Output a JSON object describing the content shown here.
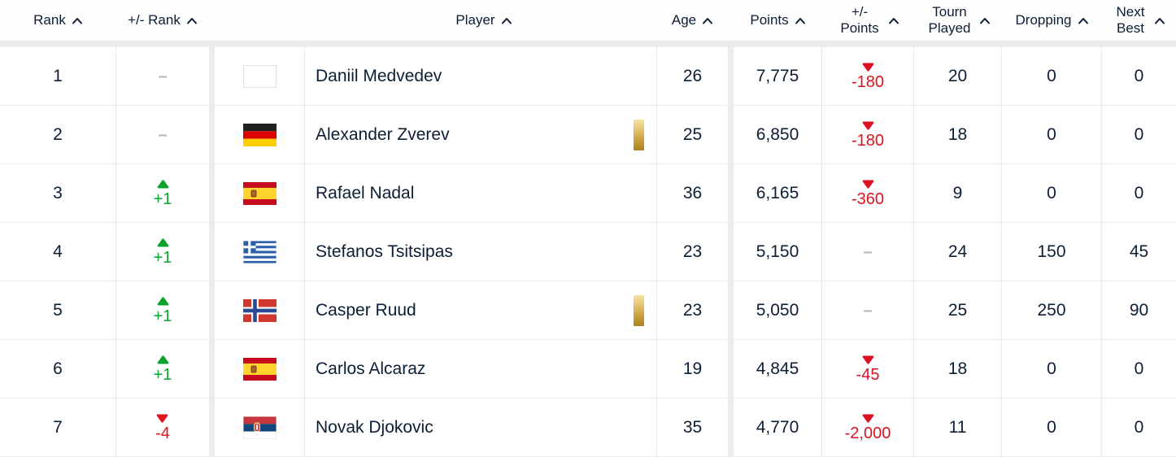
{
  "table": {
    "columns": [
      {
        "key": "rank",
        "label": "Rank"
      },
      {
        "key": "rank_change",
        "label": "+/- Rank"
      },
      {
        "key": "player",
        "label": "Player"
      },
      {
        "key": "age",
        "label": "Age"
      },
      {
        "key": "points",
        "label": "Points"
      },
      {
        "key": "points_change",
        "label": "+/- Points"
      },
      {
        "key": "tourn_played",
        "label": "Tourn Played"
      },
      {
        "key": "dropping",
        "label": "Dropping"
      },
      {
        "key": "next_best",
        "label": "Next Best"
      }
    ],
    "rows": [
      {
        "rank": "1",
        "rank_change": {
          "dir": "none",
          "value": "–"
        },
        "flag": "blank",
        "player": "Daniil Medvedev",
        "gold_bar": false,
        "age": "26",
        "points": "7,775",
        "points_change": {
          "dir": "down",
          "value": "-180"
        },
        "tourn_played": "20",
        "dropping": "0",
        "next_best": "0"
      },
      {
        "rank": "2",
        "rank_change": {
          "dir": "none",
          "value": "–"
        },
        "flag": "germany",
        "player": "Alexander Zverev",
        "gold_bar": true,
        "age": "25",
        "points": "6,850",
        "points_change": {
          "dir": "down",
          "value": "-180"
        },
        "tourn_played": "18",
        "dropping": "0",
        "next_best": "0"
      },
      {
        "rank": "3",
        "rank_change": {
          "dir": "up",
          "value": "+1"
        },
        "flag": "spain",
        "player": "Rafael Nadal",
        "gold_bar": false,
        "age": "36",
        "points": "6,165",
        "points_change": {
          "dir": "down",
          "value": "-360"
        },
        "tourn_played": "9",
        "dropping": "0",
        "next_best": "0"
      },
      {
        "rank": "4",
        "rank_change": {
          "dir": "up",
          "value": "+1"
        },
        "flag": "greece",
        "player": "Stefanos Tsitsipas",
        "gold_bar": false,
        "age": "23",
        "points": "5,150",
        "points_change": {
          "dir": "none",
          "value": "–"
        },
        "tourn_played": "24",
        "dropping": "150",
        "next_best": "45"
      },
      {
        "rank": "5",
        "rank_change": {
          "dir": "up",
          "value": "+1"
        },
        "flag": "norway",
        "player": "Casper Ruud",
        "gold_bar": true,
        "age": "23",
        "points": "5,050",
        "points_change": {
          "dir": "none",
          "value": "–"
        },
        "tourn_played": "25",
        "dropping": "250",
        "next_best": "90"
      },
      {
        "rank": "6",
        "rank_change": {
          "dir": "up",
          "value": "+1"
        },
        "flag": "spain",
        "player": "Carlos Alcaraz",
        "gold_bar": false,
        "age": "19",
        "points": "4,845",
        "points_change": {
          "dir": "down",
          "value": "-45"
        },
        "tourn_played": "18",
        "dropping": "0",
        "next_best": "0"
      },
      {
        "rank": "7",
        "rank_change": {
          "dir": "down",
          "value": "-4"
        },
        "flag": "serbia",
        "player": "Novak Djokovic",
        "gold_bar": false,
        "age": "35",
        "points": "4,770",
        "points_change": {
          "dir": "down",
          "value": "-2,000"
        },
        "tourn_played": "11",
        "dropping": "0",
        "next_best": "0"
      }
    ],
    "colors": {
      "text": "#0c1e35",
      "positive": "#0aa32b",
      "negative": "#dc121f",
      "neutral_dash": "#b0b5ba",
      "divider_band": "#ececec",
      "gold": "#dcb65a"
    }
  }
}
